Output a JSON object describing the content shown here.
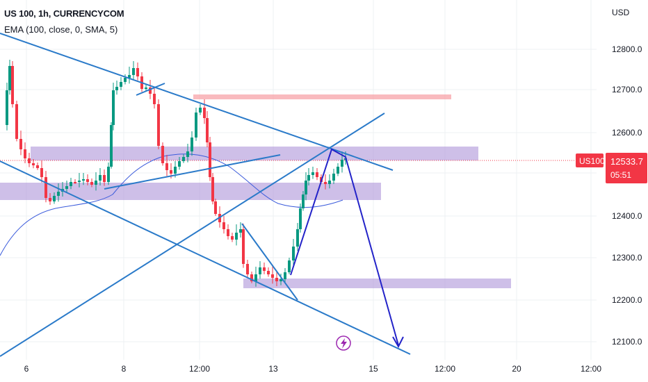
{
  "header": {
    "symbol_line": "US 100, 1h, CURRENCYCOM",
    "indicator_line": "EMA (100, close, 0, SMA, 5)"
  },
  "axis": {
    "currency": "USD",
    "price_ticks": [
      "12800.0",
      "12700.0",
      "12600.0",
      "12500.0",
      "12400.0",
      "12300.0",
      "12200.0",
      "12100.0"
    ],
    "time_ticks": [
      "6",
      "8",
      "12:00",
      "13",
      "15",
      "12:00",
      "20",
      "12:00"
    ]
  },
  "price_badge": {
    "ticker": "US100",
    "price": "12533.7",
    "countdown": "05:51",
    "color": "#f23645"
  },
  "colors": {
    "bull": "#089981",
    "bear": "#f23645",
    "trendline": "#2a7ac9",
    "projection": "#2323c8",
    "zone": "#b39ddb",
    "resistance": "#f7a3a8",
    "ema": "#3b5bdb"
  },
  "icons": {
    "bolt": "lightning-icon"
  }
}
